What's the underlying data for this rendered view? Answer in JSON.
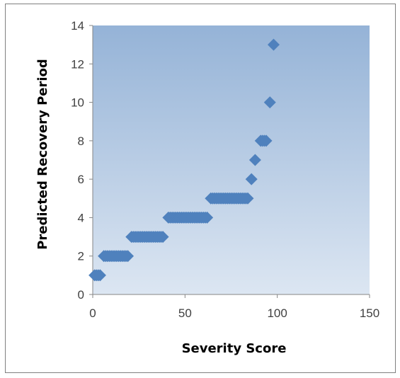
{
  "chart_data": {
    "type": "scatter",
    "title": "",
    "xlabel": "Severity Score",
    "ylabel": "Predicted Recovery Period",
    "xlim": [
      0,
      150
    ],
    "ylim": [
      0,
      14
    ],
    "x_ticks": [
      0,
      50,
      100,
      150
    ],
    "y_ticks": [
      0,
      2,
      4,
      6,
      8,
      10,
      12,
      14
    ],
    "x_tick_labels": [
      "0",
      "50",
      "100",
      "150"
    ],
    "y_tick_labels": [
      "0",
      "2",
      "4",
      "6",
      "8",
      "10",
      "12",
      "14"
    ],
    "grid": false,
    "legend": "none",
    "colors": {
      "marker": "#4f81bd",
      "plot_bg_top": "#95b3d7",
      "plot_bg_bottom": "#dce6f2",
      "axis": "#868686"
    },
    "series": [
      {
        "points": [
          [
            1,
            1
          ],
          [
            2,
            1
          ],
          [
            3,
            1
          ],
          [
            4,
            1
          ],
          [
            6,
            2
          ],
          [
            7,
            2
          ],
          [
            8,
            2
          ],
          [
            9,
            2
          ],
          [
            10,
            2
          ],
          [
            11,
            2
          ],
          [
            12,
            2
          ],
          [
            13,
            2
          ],
          [
            14,
            2
          ],
          [
            15,
            2
          ],
          [
            16,
            2
          ],
          [
            17,
            2
          ],
          [
            18,
            2
          ],
          [
            19,
            2
          ],
          [
            21,
            3
          ],
          [
            22,
            3
          ],
          [
            23,
            3
          ],
          [
            24,
            3
          ],
          [
            25,
            3
          ],
          [
            26,
            3
          ],
          [
            27,
            3
          ],
          [
            28,
            3
          ],
          [
            29,
            3
          ],
          [
            30,
            3
          ],
          [
            31,
            3
          ],
          [
            32,
            3
          ],
          [
            33,
            3
          ],
          [
            34,
            3
          ],
          [
            35,
            3
          ],
          [
            36,
            3
          ],
          [
            37,
            3
          ],
          [
            38,
            3
          ],
          [
            41,
            4
          ],
          [
            42,
            4
          ],
          [
            43,
            4
          ],
          [
            44,
            4
          ],
          [
            45,
            4
          ],
          [
            46,
            4
          ],
          [
            47,
            4
          ],
          [
            48,
            4
          ],
          [
            49,
            4
          ],
          [
            50,
            4
          ],
          [
            51,
            4
          ],
          [
            52,
            4
          ],
          [
            53,
            4
          ],
          [
            54,
            4
          ],
          [
            55,
            4
          ],
          [
            56,
            4
          ],
          [
            57,
            4
          ],
          [
            58,
            4
          ],
          [
            59,
            4
          ],
          [
            60,
            4
          ],
          [
            61,
            4
          ],
          [
            62,
            4
          ],
          [
            64,
            5
          ],
          [
            65,
            5
          ],
          [
            66,
            5
          ],
          [
            67,
            5
          ],
          [
            68,
            5
          ],
          [
            69,
            5
          ],
          [
            70,
            5
          ],
          [
            71,
            5
          ],
          [
            72,
            5
          ],
          [
            73,
            5
          ],
          [
            74,
            5
          ],
          [
            75,
            5
          ],
          [
            76,
            5
          ],
          [
            77,
            5
          ],
          [
            78,
            5
          ],
          [
            79,
            5
          ],
          [
            80,
            5
          ],
          [
            81,
            5
          ],
          [
            82,
            5
          ],
          [
            83,
            5
          ],
          [
            84,
            5
          ],
          [
            86,
            6
          ],
          [
            88,
            7
          ],
          [
            91,
            8
          ],
          [
            92,
            8
          ],
          [
            93,
            8
          ],
          [
            94,
            8
          ],
          [
            96,
            10
          ],
          [
            98,
            13
          ]
        ]
      }
    ]
  }
}
